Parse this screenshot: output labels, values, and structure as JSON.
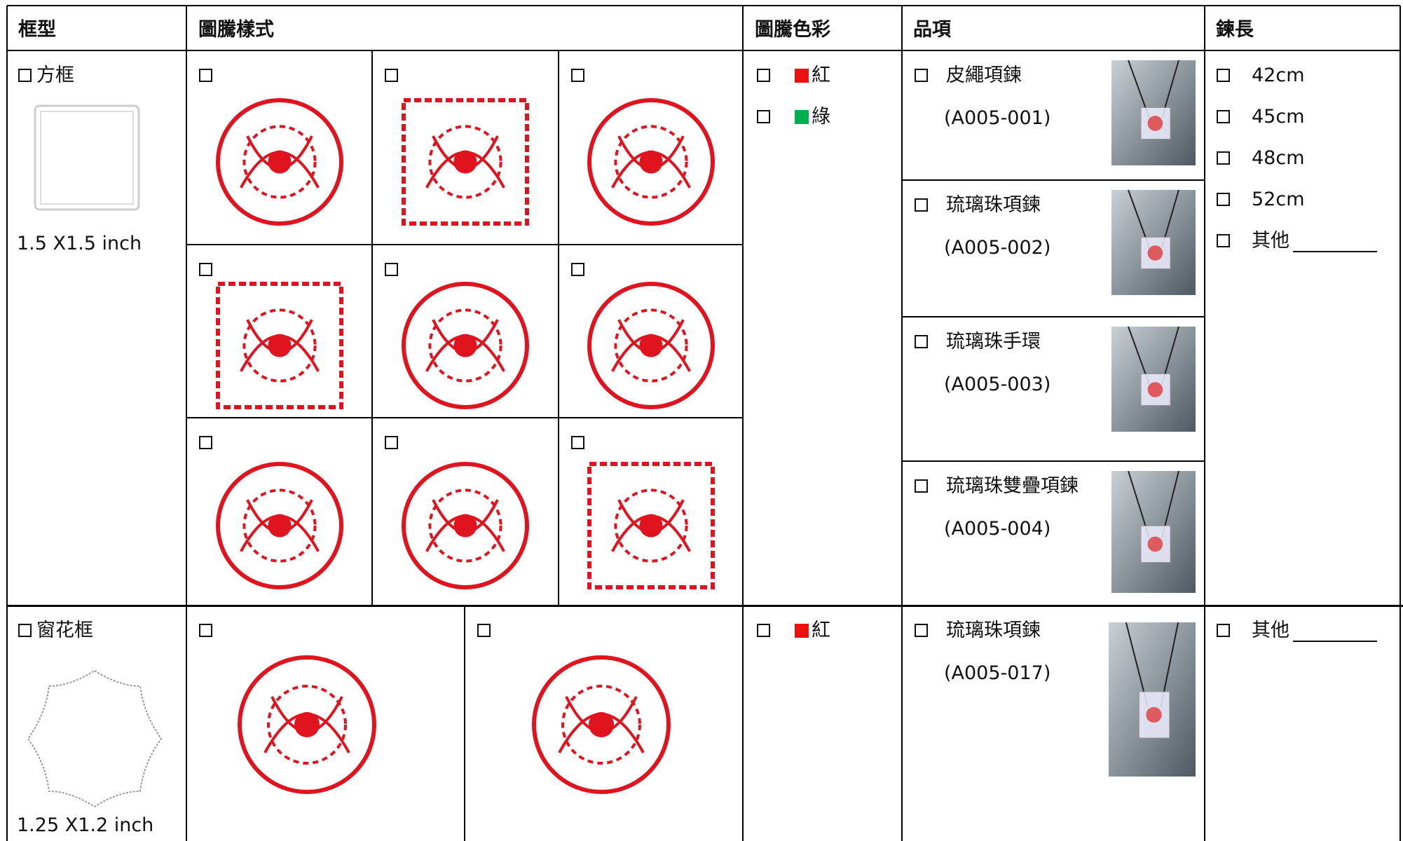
{
  "header": [
    "框型",
    "圖騰樣式",
    "圖騰色彩",
    "品項",
    "鍊長"
  ],
  "rows": [
    {
      "frame": {
        "name": "方框",
        "size": "1.5 X1.5 inch"
      },
      "colors": [
        "紅",
        "綠"
      ],
      "items": [
        {
          "name": "皮繩項鍊",
          "code": "(A005-001)"
        },
        {
          "name": "琉璃珠項鍊",
          "code": "(A005-002)"
        },
        {
          "name": "琉璃珠手環",
          "code": "(A005-003)"
        },
        {
          "name": "琉璃珠雙疊項鍊",
          "code": "(A005-004)"
        }
      ],
      "lengths": [
        "42cm",
        "45cm",
        "48cm",
        "52cm",
        "其他"
      ]
    },
    {
      "frame": {
        "name": "窗花框",
        "size": "1.25 X1.2 inch"
      },
      "colors": [
        "紅"
      ],
      "items": [
        {
          "name": "琉璃珠項鍊",
          "code": "(A005-017)"
        }
      ],
      "lengths": [
        "其他"
      ]
    }
  ]
}
